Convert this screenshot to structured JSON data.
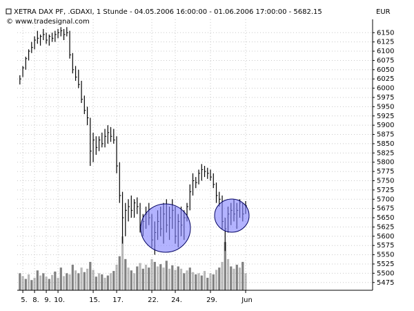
{
  "chart_data": {
    "type": "hlc",
    "title": "XETRA DAX PF, .GDAXI, 1 Stunde - 04.05.2006 16:00:00 - 01.06.2006 17:00:00 - 5682.15",
    "subtitle": "© www.tradesignal.com",
    "y_axis_label": "EUR",
    "color": "#000000",
    "volume_color": "#808080",
    "grid": true,
    "xlim": [
      -0.9,
      120.3
    ],
    "xticks": [
      {
        "value": 1,
        "label": "5."
      },
      {
        "value": 5,
        "label": "8."
      },
      {
        "value": 9,
        "label": "9."
      },
      {
        "value": 13,
        "label": "10."
      },
      {
        "value": 25,
        "label": "15."
      },
      {
        "value": 33,
        "label": "17."
      },
      {
        "value": 45,
        "label": "22."
      },
      {
        "value": 53,
        "label": "24."
      },
      {
        "value": 65,
        "label": "29."
      },
      {
        "value": 77,
        "label": "Jun"
      }
    ],
    "ylim": [
      5454,
      6186
    ],
    "yticks": [
      5475,
      5500,
      5525,
      5550,
      5575,
      5600,
      5625,
      5650,
      5675,
      5700,
      5725,
      5750,
      5775,
      5800,
      5825,
      5850,
      5875,
      5900,
      5925,
      5950,
      5975,
      6000,
      6025,
      6050,
      6075,
      6100,
      6125,
      6150
    ],
    "high": [
      6035,
      6060,
      6085,
      6105,
      6125,
      6140,
      6155,
      6145,
      6160,
      6150,
      6145,
      6150,
      6155,
      6160,
      6165,
      6160,
      6165,
      6155,
      6095,
      6060,
      6050,
      6020,
      5980,
      5950,
      5920,
      5880,
      5870,
      5870,
      5880,
      5890,
      5900,
      5895,
      5890,
      5870,
      5800,
      5720,
      5690,
      5700,
      5710,
      5700,
      5705,
      5690,
      5660,
      5680,
      5690,
      5660,
      5640,
      5670,
      5680,
      5690,
      5700,
      5680,
      5700,
      5680,
      5660,
      5680,
      5670,
      5690,
      5740,
      5770,
      5760,
      5780,
      5795,
      5790,
      5785,
      5780,
      5770,
      5745,
      5720,
      5710,
      5650,
      5680,
      5690,
      5700,
      5690,
      5700,
      5690,
      5695
    ],
    "low": [
      6010,
      6030,
      6050,
      6075,
      6095,
      6105,
      6120,
      6115,
      6130,
      6120,
      6115,
      6125,
      6125,
      6135,
      6140,
      6130,
      6140,
      6080,
      6040,
      6020,
      6000,
      5960,
      5930,
      5900,
      5790,
      5800,
      5820,
      5830,
      5840,
      5840,
      5850,
      5855,
      5850,
      5770,
      5690,
      5580,
      5600,
      5640,
      5650,
      5650,
      5660,
      5610,
      5600,
      5620,
      5630,
      5570,
      5550,
      5590,
      5600,
      5580,
      5610,
      5590,
      5620,
      5580,
      5570,
      5600,
      5590,
      5640,
      5670,
      5710,
      5730,
      5740,
      5750,
      5760,
      5755,
      5750,
      5730,
      5690,
      5680,
      5620,
      5560,
      5610,
      5630,
      5640,
      5620,
      5650,
      5640,
      5660
    ],
    "close": [
      6025,
      6055,
      6080,
      6100,
      6110,
      6130,
      6135,
      6140,
      6145,
      6130,
      6140,
      6135,
      6145,
      6150,
      6155,
      6145,
      6150,
      6090,
      6050,
      6030,
      6010,
      5970,
      5940,
      5920,
      5830,
      5860,
      5840,
      5860,
      5850,
      5870,
      5880,
      5870,
      5860,
      5790,
      5710,
      5650,
      5670,
      5680,
      5670,
      5690,
      5680,
      5630,
      5640,
      5660,
      5650,
      5590,
      5610,
      5640,
      5620,
      5660,
      5630,
      5650,
      5670,
      5600,
      5640,
      5630,
      5650,
      5680,
      5720,
      5750,
      5745,
      5770,
      5780,
      5775,
      5770,
      5760,
      5740,
      5710,
      5700,
      5640,
      5620,
      5660,
      5670,
      5660,
      5670,
      5690,
      5660,
      5682.15
    ],
    "volume": [
      30,
      25,
      20,
      28,
      18,
      22,
      35,
      26,
      30,
      24,
      20,
      27,
      33,
      22,
      40,
      25,
      30,
      28,
      45,
      35,
      30,
      40,
      32,
      38,
      50,
      36,
      24,
      30,
      28,
      22,
      26,
      30,
      34,
      45,
      60,
      95,
      55,
      40,
      35,
      30,
      42,
      48,
      38,
      45,
      40,
      55,
      50,
      42,
      46,
      40,
      52,
      38,
      44,
      36,
      42,
      38,
      30,
      35,
      40,
      32,
      28,
      30,
      26,
      34,
      22,
      30,
      28,
      36,
      40,
      50,
      85,
      55,
      42,
      38,
      45,
      40,
      50,
      30
    ]
  }
}
